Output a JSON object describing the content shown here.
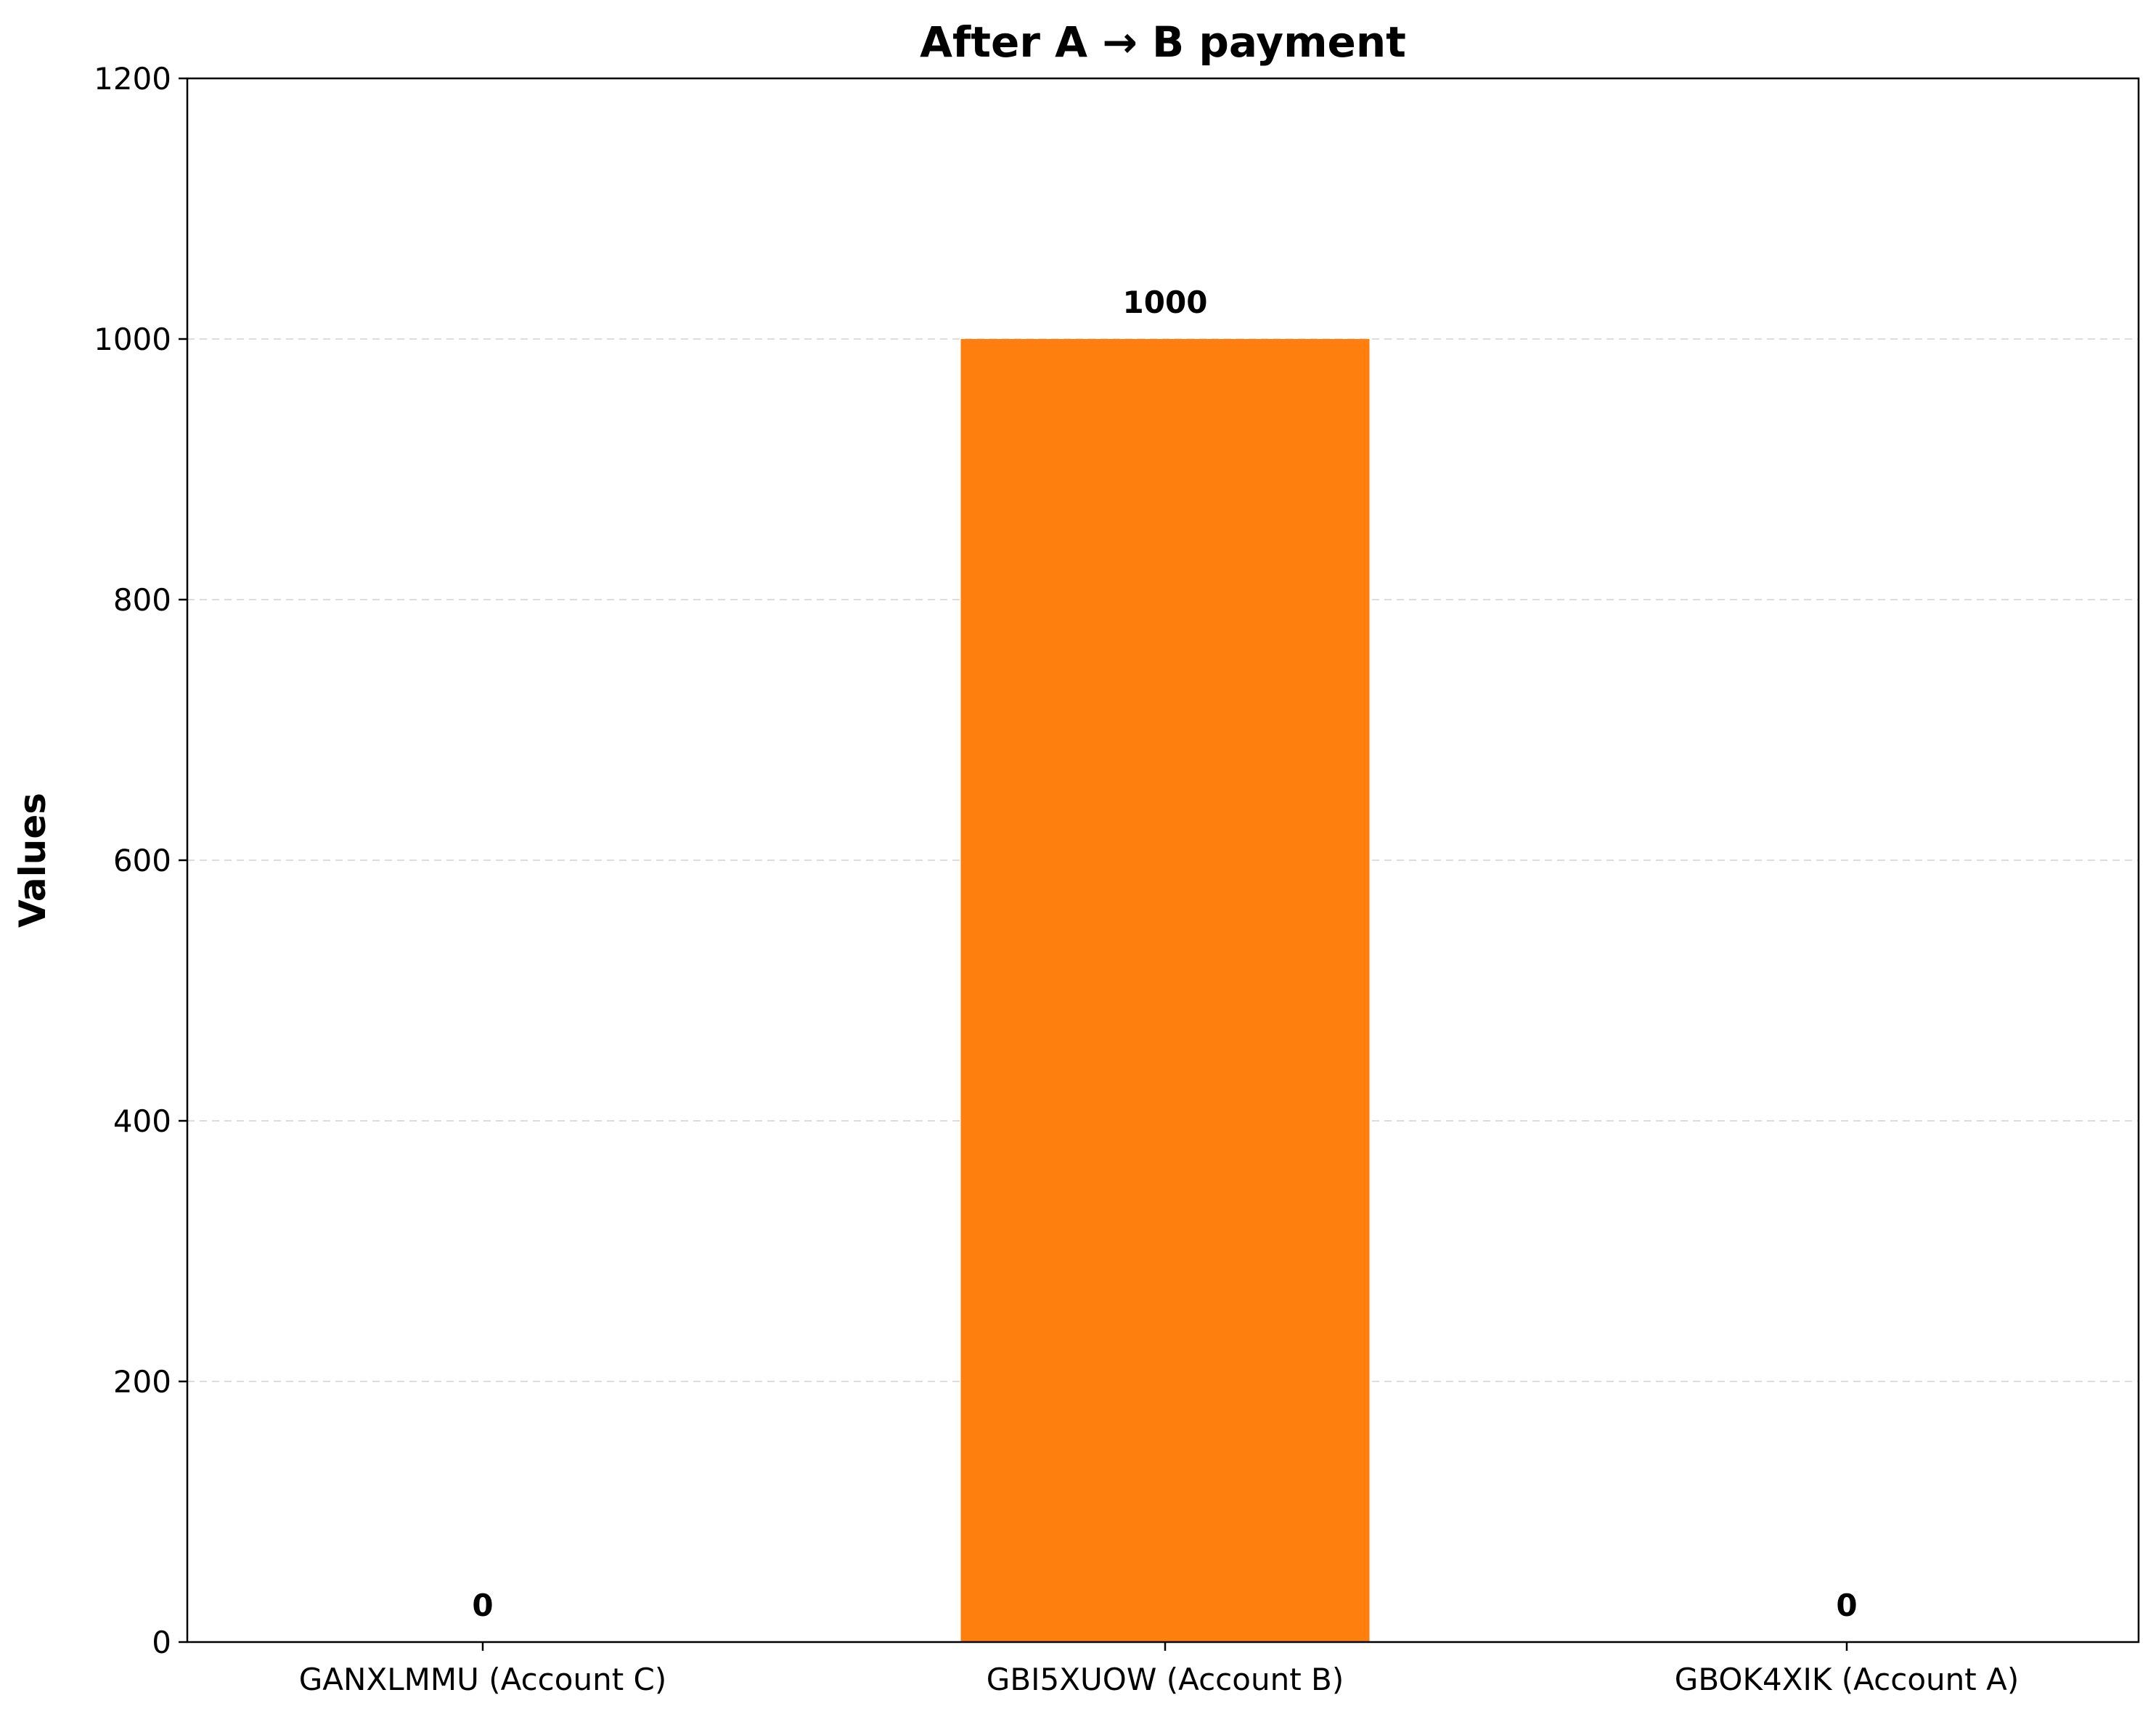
{
  "chart_data": {
    "type": "bar",
    "title": "After A → B payment",
    "xlabel": "",
    "ylabel": "Values",
    "categories": [
      "GANXLMMU (Account C)",
      "GBI5XUOW (Account B)",
      "GBOK4XIK (Account A)"
    ],
    "values": [
      0,
      1000,
      0
    ],
    "value_labels": [
      "0",
      "1000",
      "0"
    ],
    "bar_color": "#ff7f0e",
    "ylim": [
      0,
      1200
    ],
    "yticks": [
      0,
      200,
      400,
      600,
      800,
      1000,
      1200
    ],
    "ytick_labels": [
      "0",
      "200",
      "400",
      "600",
      "800",
      "1000",
      "1200"
    ],
    "grid": "y-dashed",
    "grid_color": "#dddddd"
  }
}
